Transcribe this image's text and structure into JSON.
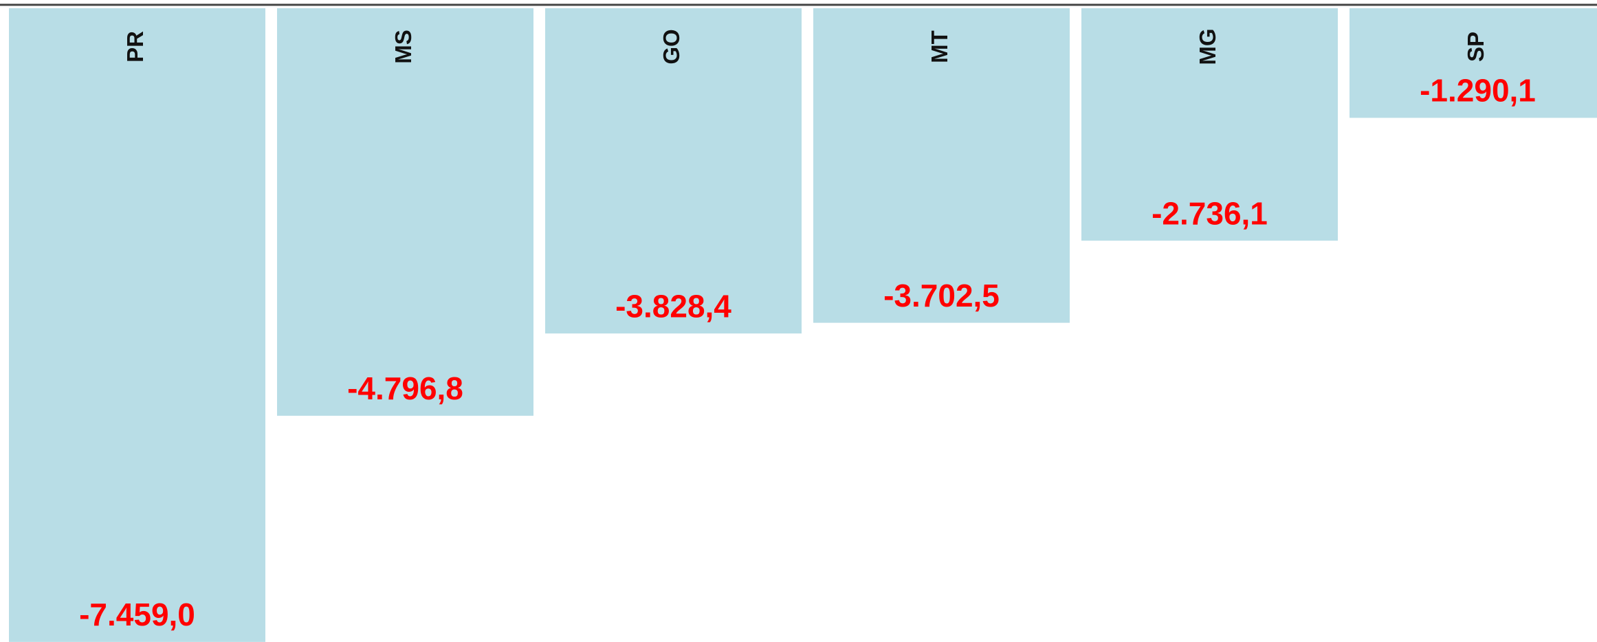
{
  "chart_data": {
    "type": "bar",
    "categories": [
      "PR",
      "MS",
      "GO",
      "MT",
      "MG",
      "SP"
    ],
    "values": [
      -7459.0,
      -4796.8,
      -3828.4,
      -3702.5,
      -2736.1,
      -1290.1
    ],
    "value_labels": [
      "-7.459,0",
      "-4.796,8",
      "-3.828,4",
      "-3.702,5",
      "-2.736,1",
      "-1.290,1"
    ],
    "color": "#b8dde6",
    "label_color": "#ff0000",
    "ylim": [
      -7460,
      0
    ]
  }
}
